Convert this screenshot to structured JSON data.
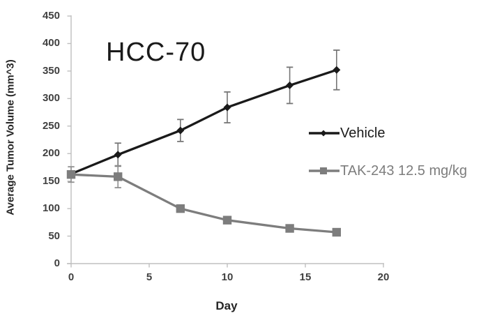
{
  "chart_data": {
    "type": "line",
    "title": "HCC-70",
    "xlabel": "Day",
    "ylabel": "Average Tumor Volume (mm^3)",
    "xlim": [
      0,
      20
    ],
    "ylim": [
      0,
      450
    ],
    "xticks": [
      0,
      5,
      10,
      15,
      20
    ],
    "yticks": [
      0,
      50,
      100,
      150,
      200,
      250,
      300,
      350,
      400,
      450
    ],
    "grid": false,
    "legend_position": "right-middle",
    "axis_color": "#bfbfbf",
    "tick_label_color": "#404040",
    "x": [
      0,
      3,
      7,
      10,
      14,
      17
    ],
    "series": [
      {
        "name": "Vehicle",
        "color": "#1a1a1a",
        "error_color": "#757575",
        "marker": "diamond",
        "values": [
          163,
          198,
          242,
          284,
          324,
          352
        ],
        "errors": [
          0,
          21,
          20,
          28,
          33,
          36
        ]
      },
      {
        "name": "TAK-243 12.5 mg/kg",
        "color": "#7d7d7d",
        "error_color": "#8f8f8f",
        "marker": "square",
        "values": [
          162,
          158,
          100,
          79,
          64,
          57
        ],
        "errors": [
          14,
          20,
          0,
          0,
          0,
          0
        ]
      }
    ]
  }
}
